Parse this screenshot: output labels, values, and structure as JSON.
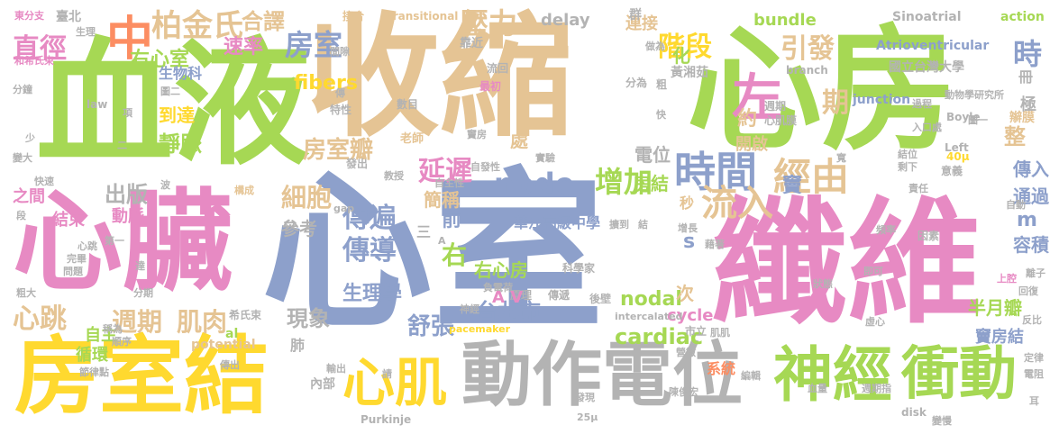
{
  "words": [
    {
      "text": "血液",
      "color": "#a6d854"
    },
    {
      "text": "收縮",
      "color": "#e5c494"
    },
    {
      "text": "心房",
      "color": "#a6d854"
    },
    {
      "text": "心臟",
      "color": "#e78ac3"
    },
    {
      "text": "心室",
      "color": "#8da0cb"
    },
    {
      "text": "纖維",
      "color": "#e78ac3"
    },
    {
      "text": "房室結",
      "color": "#ffd92f"
    },
    {
      "text": "動作電位",
      "color": "#b3b3b3"
    },
    {
      "text": "神經",
      "color": "#a6d854"
    },
    {
      "text": "衝動",
      "color": "#a6d854"
    },
    {
      "text": "心肌",
      "color": "#ffd92f"
    },
    {
      "text": "中",
      "color": "#fc8d62"
    },
    {
      "text": "左",
      "color": "#e78ac3"
    },
    {
      "text": "時間",
      "color": "#8da0cb"
    },
    {
      "text": "經由",
      "color": "#e5c494"
    },
    {
      "text": "流入",
      "color": "#e5c494"
    },
    {
      "text": "柏金氏",
      "color": "#e5c494"
    },
    {
      "text": "房室",
      "color": "#8da0cb"
    },
    {
      "text": "壓力",
      "color": "#e5c494"
    },
    {
      "text": "直徑",
      "color": "#e78ac3"
    },
    {
      "text": "階段",
      "color": "#ffd92f"
    },
    {
      "text": "引發",
      "color": "#e5c494"
    },
    {
      "text": "延遲",
      "color": "#e78ac3"
    },
    {
      "text": "node",
      "color": "#8da0cb"
    },
    {
      "text": "增加",
      "color": "#a6d854"
    },
    {
      "text": "細胞",
      "color": "#e5c494"
    },
    {
      "text": "傳遍",
      "color": "#8da0cb"
    },
    {
      "text": "傳導",
      "color": "#8da0cb"
    },
    {
      "text": "週期",
      "color": "#e5c494"
    },
    {
      "text": "肌肉",
      "color": "#e5c494"
    },
    {
      "text": "心跳",
      "color": "#e5c494"
    },
    {
      "text": "舒張",
      "color": "#8da0cb"
    },
    {
      "text": "現象",
      "color": "#b3b3b3"
    },
    {
      "text": "生理學",
      "color": "#8da0cb"
    },
    {
      "text": "台北市",
      "color": "#8da0cb"
    },
    {
      "text": "右心房",
      "color": "#a6d854"
    },
    {
      "text": "房室瓣",
      "color": "#e5c494"
    },
    {
      "text": "期",
      "color": "#e5c494"
    },
    {
      "text": "時",
      "color": "#8da0cb"
    },
    {
      "text": "右心室",
      "color": "#a6d854"
    },
    {
      "text": "fibers",
      "color": "#ffd92f"
    },
    {
      "text": "cardiac",
      "color": "#a6d854"
    },
    {
      "text": "nodal",
      "color": "#a6d854"
    },
    {
      "text": "cycle",
      "color": "#e78ac3"
    },
    {
      "text": "半月瓣",
      "color": "#a6d854"
    },
    {
      "text": "竇房結",
      "color": "#8da0cb"
    },
    {
      "text": "容積",
      "color": "#8da0cb"
    },
    {
      "text": "傳入",
      "color": "#8da0cb"
    },
    {
      "text": "通過",
      "color": "#8da0cb"
    },
    {
      "text": "電位",
      "color": "#b3b3b3"
    },
    {
      "text": "房結",
      "color": "#a6d854"
    },
    {
      "text": "簡稱",
      "color": "#e5c494"
    },
    {
      "text": "出版",
      "color": "#b3b3b3"
    },
    {
      "text": "參考",
      "color": "#b3b3b3"
    },
    {
      "text": "靜脈",
      "color": "#a6d854"
    },
    {
      "text": "到達",
      "color": "#ffd92f"
    },
    {
      "text": "生物科",
      "color": "#8da0cb"
    },
    {
      "text": "速率",
      "color": "#e78ac3"
    },
    {
      "text": "合譯",
      "color": "#e5c494"
    },
    {
      "text": "bundle",
      "color": "#a6d854"
    },
    {
      "text": "delay",
      "color": "#b3b3b3"
    },
    {
      "text": "連接",
      "color": "#e5c494"
    },
    {
      "text": "Sinoatrial",
      "color": "#b3b3b3"
    },
    {
      "text": "action",
      "color": "#a6d854"
    },
    {
      "text": "Atrioventricular",
      "color": "#8da0cb"
    },
    {
      "text": "國立台灣大學",
      "color": "#b3b3b3"
    },
    {
      "text": "華江高級中學",
      "color": "#8da0cb"
    },
    {
      "text": "結束",
      "color": "#e78ac3"
    },
    {
      "text": "動脈",
      "color": "#e78ac3"
    },
    {
      "text": "循環",
      "color": "#a6d854"
    },
    {
      "text": "自主",
      "color": "#a6d854"
    },
    {
      "text": "系統",
      "color": "#fc8d62"
    },
    {
      "text": "開啟",
      "color": "#e5c494"
    },
    {
      "text": "約",
      "color": "#e5c494"
    },
    {
      "text": "處",
      "color": "#e5c494"
    },
    {
      "text": "前",
      "color": "#8da0cb"
    },
    {
      "text": "右",
      "color": "#a6d854"
    },
    {
      "text": "化",
      "color": "#a6d854"
    },
    {
      "text": "次",
      "color": "#e5c494"
    },
    {
      "text": "肺",
      "color": "#b3b3b3"
    },
    {
      "text": "黃湘茹",
      "color": "#b3b3b3"
    },
    {
      "text": "整",
      "color": "#e5c494"
    },
    {
      "text": "辮膜",
      "color": "#e5c494"
    },
    {
      "text": "極",
      "color": "#b3b3b3"
    },
    {
      "text": "冊",
      "color": "#b3b3b3"
    },
    {
      "text": "內部",
      "color": "#b3b3b3"
    },
    {
      "text": "臺北",
      "color": "#b3b3b3"
    },
    {
      "text": "東分支",
      "color": "#e78ac3"
    },
    {
      "text": "和希氏束",
      "color": "#e78ac3"
    },
    {
      "text": "接合",
      "color": "#e5c494"
    },
    {
      "text": "transitional",
      "color": "#e5c494"
    },
    {
      "text": "群",
      "color": "#b3b3b3"
    },
    {
      "text": "靠近",
      "color": "#b3b3b3"
    },
    {
      "text": "流回",
      "color": "#b3b3b3"
    },
    {
      "text": "最初",
      "color": "#e78ac3"
    },
    {
      "text": "數目",
      "color": "#b3b3b3"
    },
    {
      "text": "老師",
      "color": "#e5c494"
    },
    {
      "text": "分為",
      "color": "#b3b3b3"
    },
    {
      "text": "粗",
      "color": "#b3b3b3"
    },
    {
      "text": "branch",
      "color": "#b3b3b3"
    },
    {
      "text": "junction",
      "color": "#8da0cb"
    },
    {
      "text": "Boyle",
      "color": "#b3b3b3"
    },
    {
      "text": "Left",
      "color": "#b3b3b3"
    },
    {
      "text": "心肌膜",
      "color": "#b3b3b3"
    },
    {
      "text": "週期",
      "color": "#b3b3b3"
    },
    {
      "text": "動物學研究所",
      "color": "#b3b3b3"
    },
    {
      "text": "入口處",
      "color": "#b3b3b3"
    },
    {
      "text": "圖一",
      "color": "#b3b3b3"
    },
    {
      "text": "過程",
      "color": "#b3b3b3"
    },
    {
      "text": "40μ",
      "color": "#ffd92f"
    },
    {
      "text": "意義",
      "color": "#b3b3b3"
    },
    {
      "text": "結位",
      "color": "#b3b3b3"
    },
    {
      "text": "剩下",
      "color": "#b3b3b3"
    },
    {
      "text": "責任",
      "color": "#b3b3b3"
    },
    {
      "text": "自主性",
      "color": "#b3b3b3"
    },
    {
      "text": "自發性",
      "color": "#b3b3b3"
    },
    {
      "text": "實驗",
      "color": "#b3b3b3"
    },
    {
      "text": "教授",
      "color": "#b3b3b3"
    },
    {
      "text": "發出",
      "color": "#b3b3b3"
    },
    {
      "text": "特性",
      "color": "#b3b3b3"
    },
    {
      "text": "竇房",
      "color": "#b3b3b3"
    },
    {
      "text": "科學家",
      "color": "#b3b3b3"
    },
    {
      "text": "原理",
      "color": "#b3b3b3"
    },
    {
      "text": "傳遞",
      "color": "#b3b3b3"
    },
    {
      "text": "後壁",
      "color": "#b3b3b3"
    },
    {
      "text": "intercalated",
      "color": "#b3b3b3"
    },
    {
      "text": "pacemaker",
      "color": "#ffd92f"
    },
    {
      "text": "potential",
      "color": "#e5c494"
    },
    {
      "text": "Purkinje",
      "color": "#b3b3b3"
    },
    {
      "text": "25μ",
      "color": "#b3b3b3"
    },
    {
      "text": "發現",
      "color": "#b3b3b3"
    },
    {
      "text": "陳俊宏",
      "color": "#b3b3b3"
    },
    {
      "text": "disk",
      "color": "#b3b3b3"
    },
    {
      "text": "變慢",
      "color": "#b3b3b3"
    },
    {
      "text": "血量",
      "color": "#b3b3b3"
    },
    {
      "text": "週期指",
      "color": "#b3b3b3"
    },
    {
      "text": "肌肌",
      "color": "#b3b3b3"
    },
    {
      "text": "編輯",
      "color": "#b3b3b3"
    },
    {
      "text": "營微",
      "color": "#b3b3b3"
    },
    {
      "text": "狀態",
      "color": "#b3b3b3"
    },
    {
      "text": "即可",
      "color": "#b3b3b3"
    },
    {
      "text": "上腔",
      "color": "#e78ac3"
    },
    {
      "text": "離子",
      "color": "#b3b3b3"
    },
    {
      "text": "回復",
      "color": "#b3b3b3"
    },
    {
      "text": "反比",
      "color": "#b3b3b3"
    },
    {
      "text": "定律",
      "color": "#b3b3b3"
    },
    {
      "text": "電阻",
      "color": "#b3b3b3"
    },
    {
      "text": "耳",
      "color": "#b3b3b3"
    },
    {
      "text": "因素",
      "color": "#b3b3b3"
    },
    {
      "text": "頻率",
      "color": "#b3b3b3"
    },
    {
      "text": "藉著",
      "color": "#b3b3b3"
    },
    {
      "text": "增長",
      "color": "#b3b3b3"
    },
    {
      "text": "擴到",
      "color": "#b3b3b3"
    },
    {
      "text": "負電荷",
      "color": "#b3b3b3"
    },
    {
      "text": "神經",
      "color": "#b3b3b3"
    },
    {
      "text": "傳出",
      "color": "#b3b3b3"
    },
    {
      "text": "輸出",
      "color": "#b3b3b3"
    },
    {
      "text": "請",
      "color": "#b3b3b3"
    },
    {
      "text": "稱為",
      "color": "#b3b3b3"
    },
    {
      "text": "順序",
      "color": "#b3b3b3"
    },
    {
      "text": "節律點",
      "color": "#b3b3b3"
    },
    {
      "text": "希氏束",
      "color": "#b3b3b3"
    },
    {
      "text": "分期",
      "color": "#b3b3b3"
    },
    {
      "text": "粗大",
      "color": "#b3b3b3"
    },
    {
      "text": "問題",
      "color": "#b3b3b3"
    },
    {
      "text": "完畢",
      "color": "#b3b3b3"
    },
    {
      "text": "心跳",
      "color": "#b3b3b3"
    },
    {
      "text": "第一",
      "color": "#b3b3b3"
    },
    {
      "text": "達",
      "color": "#b3b3b3"
    },
    {
      "text": "gap",
      "color": "#b3b3b3"
    },
    {
      "text": "三",
      "color": "#b3b3b3"
    },
    {
      "text": "A",
      "color": "#b3b3b3"
    },
    {
      "text": "快速",
      "color": "#b3b3b3"
    },
    {
      "text": "變大",
      "color": "#b3b3b3"
    },
    {
      "text": "少",
      "color": "#b3b3b3"
    },
    {
      "text": "分鐘",
      "color": "#b3b3b3"
    },
    {
      "text": "law",
      "color": "#b3b3b3"
    },
    {
      "text": "項",
      "color": "#b3b3b3"
    },
    {
      "text": "二",
      "color": "#b3b3b3"
    },
    {
      "text": "傳",
      "color": "#b3b3b3"
    },
    {
      "text": "間隙",
      "color": "#b3b3b3"
    },
    {
      "text": "生理",
      "color": "#b3b3b3"
    },
    {
      "text": "圖二",
      "color": "#b3b3b3"
    },
    {
      "text": "做為",
      "color": "#b3b3b3"
    },
    {
      "text": "寬",
      "color": "#b3b3b3"
    },
    {
      "text": "快",
      "color": "#b3b3b3"
    },
    {
      "text": "之間",
      "color": "#e78ac3"
    },
    {
      "text": "s",
      "color": "#8da0cb"
    },
    {
      "text": "m",
      "color": "#8da0cb"
    },
    {
      "text": "秒",
      "color": "#e5c494"
    },
    {
      "text": "al",
      "color": "#a6d854"
    },
    {
      "text": "竇",
      "color": "#8da0cb"
    },
    {
      "text": "A V",
      "color": "#e78ac3"
    },
    {
      "text": "市立",
      "color": "#b3b3b3"
    },
    {
      "text": "結",
      "color": "#b3b3b3"
    },
    {
      "text": "虛心",
      "color": "#b3b3b3"
    },
    {
      "text": "波",
      "color": "#b3b3b3"
    },
    {
      "text": "構成",
      "color": "#b3b3b3"
    },
    {
      "text": "段",
      "color": "#b3b3b3"
    },
    {
      "text": "自動",
      "color": "#b3b3b3"
    }
  ]
}
